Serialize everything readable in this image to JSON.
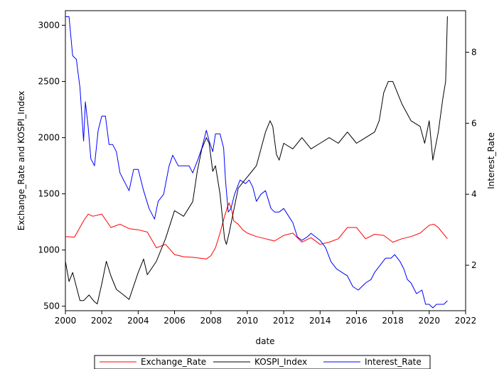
{
  "chart_data": {
    "type": "line",
    "title": "",
    "xlabel": "date",
    "ylabel_left": "Exchange_Rate and KOSPI_Index",
    "ylabel_right": "Interest_Rate",
    "x_ticks": [
      "2000",
      "2002",
      "2004",
      "2006",
      "2008",
      "2010",
      "2012",
      "2014",
      "2016",
      "2018",
      "2020",
      "2022"
    ],
    "y_left_ticks": [
      "500",
      "1000",
      "1500",
      "2000",
      "2500",
      "3000"
    ],
    "y_right_ticks": [
      "2",
      "4",
      "6",
      "8"
    ],
    "xlim": [
      2000,
      2022
    ],
    "ylim_left": [
      460,
      3130
    ],
    "ylim_right": [
      0.72,
      9.17
    ],
    "legend_position": "bottom",
    "grid": false,
    "series": [
      {
        "name": "Exchange_Rate",
        "color": "#ff0000",
        "axis": "left",
        "x": [
          2000.0,
          2000.5,
          2001.0,
          2001.25,
          2001.5,
          2002.0,
          2002.5,
          2003.0,
          2003.5,
          2004.0,
          2004.5,
          2005.0,
          2005.5,
          2006.0,
          2006.5,
          2007.0,
          2007.5,
          2007.75,
          2008.0,
          2008.25,
          2008.5,
          2008.75,
          2008.9,
          2009.0,
          2009.15,
          2009.25,
          2009.5,
          2009.75,
          2010.0,
          2010.5,
          2011.0,
          2011.5,
          2012.0,
          2012.5,
          2013.0,
          2013.5,
          2014.0,
          2014.5,
          2015.0,
          2015.5,
          2016.0,
          2016.5,
          2017.0,
          2017.5,
          2018.0,
          2018.5,
          2019.0,
          2019.5,
          2020.0,
          2020.25,
          2020.5,
          2020.75,
          2021.0
        ],
        "values": [
          1120,
          1115,
          1260,
          1320,
          1300,
          1320,
          1200,
          1230,
          1190,
          1180,
          1160,
          1020,
          1050,
          960,
          940,
          935,
          925,
          920,
          950,
          1020,
          1150,
          1300,
          1380,
          1420,
          1350,
          1260,
          1230,
          1180,
          1150,
          1120,
          1100,
          1080,
          1130,
          1150,
          1070,
          1110,
          1050,
          1070,
          1100,
          1200,
          1200,
          1100,
          1140,
          1130,
          1070,
          1100,
          1120,
          1150,
          1220,
          1230,
          1200,
          1150,
          1100
        ]
      },
      {
        "name": "KOSPI_Index",
        "color": "#000000",
        "axis": "left",
        "x": [
          2000.0,
          2000.2,
          2000.4,
          2000.8,
          2001.0,
          2001.3,
          2001.6,
          2001.75,
          2002.0,
          2002.25,
          2002.5,
          2002.8,
          2003.2,
          2003.5,
          2004.0,
          2004.3,
          2004.5,
          2004.8,
          2005.0,
          2005.5,
          2006.0,
          2006.5,
          2007.0,
          2007.25,
          2007.5,
          2007.75,
          2007.9,
          2008.1,
          2008.25,
          2008.5,
          2008.75,
          2008.85,
          2009.0,
          2009.25,
          2009.5,
          2010.0,
          2010.25,
          2010.5,
          2010.75,
          2011.0,
          2011.25,
          2011.4,
          2011.6,
          2011.75,
          2012.0,
          2012.5,
          2013.0,
          2013.5,
          2014.0,
          2014.5,
          2015.0,
          2015.5,
          2016.0,
          2016.5,
          2017.0,
          2017.25,
          2017.5,
          2017.75,
          2018.0,
          2018.5,
          2019.0,
          2019.5,
          2019.75,
          2020.0,
          2020.2,
          2020.5,
          2020.75,
          2020.9,
          2021.0
        ],
        "values": [
          900,
          720,
          800,
          550,
          550,
          600,
          540,
          520,
          700,
          900,
          770,
          650,
          600,
          560,
          800,
          920,
          780,
          850,
          900,
          1100,
          1350,
          1300,
          1430,
          1700,
          1900,
          2000,
          1950,
          1700,
          1750,
          1500,
          1100,
          1050,
          1150,
          1350,
          1550,
          1650,
          1700,
          1750,
          1900,
          2050,
          2150,
          2100,
          1850,
          1800,
          1950,
          1900,
          2000,
          1900,
          1950,
          2000,
          1950,
          2050,
          1950,
          2000,
          2050,
          2150,
          2400,
          2500,
          2500,
          2300,
          2150,
          2100,
          1950,
          2150,
          1800,
          2050,
          2350,
          2500,
          3080
        ]
      },
      {
        "name": "Interest_Rate",
        "color": "#0000ff",
        "axis": "right",
        "x": [
          2000.0,
          2000.2,
          2000.4,
          2000.6,
          2000.8,
          2001.0,
          2001.1,
          2001.25,
          2001.4,
          2001.6,
          2001.8,
          2002.0,
          2002.2,
          2002.4,
          2002.6,
          2002.8,
          2003.0,
          2003.3,
          2003.5,
          2003.75,
          2004.0,
          2004.3,
          2004.6,
          2004.9,
          2005.1,
          2005.4,
          2005.7,
          2005.9,
          2006.2,
          2006.5,
          2006.8,
          2007.0,
          2007.3,
          2007.5,
          2007.75,
          2007.9,
          2008.1,
          2008.25,
          2008.5,
          2008.7,
          2008.8,
          2008.95,
          2009.1,
          2009.3,
          2009.6,
          2009.9,
          2010.1,
          2010.3,
          2010.5,
          2010.75,
          2011.0,
          2011.3,
          2011.5,
          2011.75,
          2012.0,
          2012.25,
          2012.5,
          2012.75,
          2013.0,
          2013.3,
          2013.5,
          2013.75,
          2014.0,
          2014.3,
          2014.6,
          2014.9,
          2015.2,
          2015.5,
          2015.8,
          2016.1,
          2016.5,
          2016.8,
          2017.0,
          2017.3,
          2017.6,
          2017.9,
          2018.1,
          2018.4,
          2018.6,
          2018.8,
          2019.0,
          2019.3,
          2019.6,
          2019.8,
          2020.0,
          2020.2,
          2020.4,
          2020.6,
          2020.8,
          2021.0
        ],
        "values": [
          9.0,
          9.0,
          7.9,
          7.8,
          7.0,
          5.5,
          6.6,
          5.9,
          5.0,
          4.8,
          5.8,
          6.2,
          6.2,
          5.4,
          5.4,
          5.2,
          4.6,
          4.3,
          4.1,
          4.7,
          4.7,
          4.1,
          3.6,
          3.3,
          3.8,
          4.0,
          4.8,
          5.1,
          4.8,
          4.8,
          4.8,
          4.6,
          5.0,
          5.3,
          5.8,
          5.5,
          5.2,
          5.7,
          5.7,
          5.3,
          4.4,
          3.5,
          3.6,
          4.0,
          4.4,
          4.3,
          4.4,
          4.2,
          3.8,
          4.0,
          4.1,
          3.6,
          3.5,
          3.5,
          3.6,
          3.4,
          3.2,
          2.8,
          2.7,
          2.8,
          2.9,
          2.8,
          2.7,
          2.5,
          2.1,
          1.9,
          1.8,
          1.7,
          1.4,
          1.3,
          1.5,
          1.6,
          1.8,
          2.0,
          2.2,
          2.2,
          2.3,
          2.1,
          1.9,
          1.6,
          1.5,
          1.2,
          1.3,
          0.9,
          0.9,
          0.8,
          0.9,
          0.9,
          0.9,
          1.0
        ]
      }
    ]
  }
}
